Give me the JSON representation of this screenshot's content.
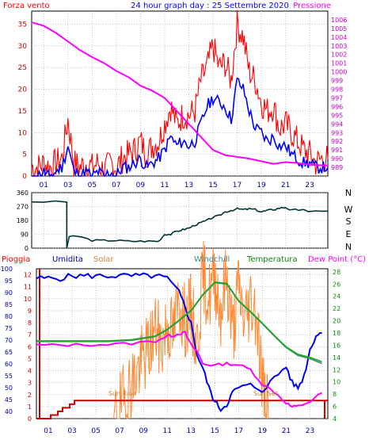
{
  "header": {
    "left_label": "Forza vento",
    "title": "24 hour graph day : 25 Settembre 2020",
    "right_label": "Pressione"
  },
  "colors": {
    "wind": "#ff0000",
    "gust": "#0000ff",
    "pressure": "#ff00ff",
    "direction": "#003333",
    "rain": "#cc0000",
    "humidity": "#0000ee",
    "solar": "#ff8833",
    "windchill": "#448888",
    "temperature": "#22aa22",
    "dewpoint": "#ff00ff",
    "grid": "#a0a0a0"
  },
  "x_ticks": [
    "01",
    "03",
    "05",
    "07",
    "09",
    "11",
    "13",
    "15",
    "17",
    "19",
    "21",
    "23"
  ],
  "compass": [
    "N",
    "W",
    "S",
    "E",
    "N"
  ],
  "bottom_header": {
    "rain": "Pioggia",
    "humidity": "Umidita",
    "solar": "Solar",
    "windchill": "Windchill",
    "temperature": "Temperatura",
    "dewpoint": "Dew Point (°C)"
  },
  "annotations": {
    "sunrise": "Sun Rise",
    "sunset": "Sun Set"
  },
  "chart_data": [
    {
      "type": "line",
      "x_unit": "hour",
      "xlim": [
        0,
        24.5
      ],
      "ylim_left": [
        0,
        38
      ],
      "left_ticks": [
        0,
        5,
        10,
        15,
        20,
        25,
        30,
        35
      ],
      "ylim_right": [
        988,
        1007
      ],
      "right_ticks": [
        989,
        990,
        991,
        992,
        993,
        994,
        995,
        996,
        997,
        998,
        999,
        1000,
        1001,
        1002,
        1003,
        1004,
        1005,
        1006
      ],
      "series": [
        {
          "name": "Forza vento",
          "axis": "left",
          "x": [
            0,
            0.5,
            1,
            1.5,
            2,
            2.5,
            3,
            3.5,
            4,
            4.5,
            5,
            5.5,
            6,
            6.5,
            7,
            7.5,
            8,
            8.5,
            9,
            9.5,
            10,
            10.5,
            11,
            11.5,
            12,
            12.5,
            13,
            13.5,
            14,
            14.5,
            15,
            15.5,
            16,
            16.5,
            17,
            17.5,
            18,
            18.5,
            19,
            19.5,
            20,
            20.5,
            21,
            21.5,
            22,
            22.5,
            23,
            23.5,
            24,
            24.5
          ],
          "y": [
            2,
            2,
            3,
            2,
            3,
            4,
            13,
            3,
            2,
            3,
            2,
            3,
            1,
            3,
            2,
            4,
            5,
            6,
            8,
            5,
            7,
            8,
            12,
            16,
            12,
            14,
            14,
            15,
            22,
            25,
            30,
            25,
            26,
            22,
            35,
            32,
            24,
            22,
            17,
            15,
            16,
            11,
            12,
            10,
            8,
            6,
            5,
            3,
            4,
            4
          ]
        },
        {
          "name": "Gust",
          "axis": "left",
          "x": [
            0,
            0.5,
            1,
            1.5,
            2,
            2.5,
            3,
            3.5,
            4,
            4.5,
            5,
            5.5,
            6,
            6.5,
            7,
            7.5,
            8,
            8.5,
            9,
            9.5,
            10,
            10.5,
            11,
            11.5,
            12,
            12.5,
            13,
            13.5,
            14,
            14.5,
            15,
            15.5,
            16,
            16.5,
            17,
            17.5,
            18,
            18.5,
            19,
            19.5,
            20,
            20.5,
            21,
            21.5,
            22,
            22.5,
            23,
            23.5,
            24,
            24.5
          ],
          "y": [
            0,
            0,
            1,
            0,
            1,
            2,
            7,
            1,
            0,
            1,
            0,
            1,
            0,
            1,
            0,
            2,
            2,
            3,
            4,
            2,
            3,
            4,
            6,
            9,
            7,
            8,
            7,
            8,
            12,
            16,
            18,
            17,
            16,
            13,
            22,
            20,
            15,
            11,
            10,
            8,
            9,
            7,
            7,
            5,
            4,
            3,
            3,
            2,
            2,
            2
          ]
        },
        {
          "name": "Pressione",
          "axis": "right",
          "x": [
            0,
            1,
            2,
            3,
            4,
            5,
            6,
            7,
            8,
            9,
            10,
            11,
            12,
            13,
            14,
            15,
            16,
            17,
            18,
            19,
            20,
            21,
            22,
            23,
            24.5
          ],
          "y": [
            1005.7,
            1005.3,
            1004.5,
            1003.5,
            1002.5,
            1001.7,
            1001.0,
            1000.1,
            999.4,
            998.4,
            997.8,
            997.0,
            995.5,
            994.0,
            992.5,
            991.0,
            990.4,
            990.2,
            990.0,
            989.7,
            989.4,
            989.6,
            989.5,
            989.3,
            989.2
          ]
        }
      ]
    },
    {
      "type": "line",
      "x_unit": "hour",
      "xlim": [
        0,
        24.5
      ],
      "ylim": [
        0,
        360
      ],
      "y_ticks": [
        0,
        90,
        180,
        270,
        360
      ],
      "series": [
        {
          "name": "Wind direction",
          "x": [
            0,
            2.9,
            2.9,
            3.1,
            4,
            5,
            6,
            7,
            8,
            9,
            10,
            10.5,
            11,
            11.5,
            12,
            12.5,
            13,
            13.5,
            14,
            14.5,
            15,
            15.5,
            16,
            16.5,
            17,
            17.5,
            18,
            18.5,
            19,
            19.5,
            20,
            20.5,
            21,
            21.5,
            22,
            22.5,
            23,
            24.5
          ],
          "y": [
            302,
            300,
            0,
            75,
            75,
            50,
            50,
            50,
            45,
            45,
            45,
            45,
            90,
            90,
            110,
            120,
            130,
            150,
            165,
            180,
            200,
            210,
            235,
            245,
            255,
            250,
            255,
            250,
            235,
            245,
            250,
            260,
            265,
            245,
            250,
            245,
            240,
            240
          ]
        }
      ]
    },
    {
      "type": "line",
      "x_unit": "hour",
      "xlim": [
        0,
        24.5
      ],
      "ylim_left": [
        37,
        100
      ],
      "left_ticks": [
        40,
        45,
        50,
        55,
        60,
        65,
        70,
        75,
        80,
        85,
        90,
        95,
        100
      ],
      "ylim_rain": [
        0,
        12.5
      ],
      "rain_ticks": [
        0,
        1,
        2,
        3,
        4,
        5,
        6,
        7,
        8,
        9,
        10,
        11,
        12
      ],
      "ylim_right": [
        4,
        28.5
      ],
      "right_ticks": [
        4,
        6,
        8,
        10,
        12,
        14,
        16,
        18,
        20,
        22,
        24,
        26,
        28
      ],
      "series": [
        {
          "name": "Pioggia",
          "axis": "rain",
          "x": [
            0,
            0.8,
            1.2,
            1.8,
            2.2,
            2.8,
            3.2,
            4,
            24.5
          ],
          "y": [
            0,
            0,
            0.3,
            0.6,
            0.9,
            1.2,
            1.5,
            1.5,
            1.5
          ]
        },
        {
          "name": "Umidita",
          "axis": "left",
          "x": [
            0,
            1,
            2,
            3,
            4,
            5,
            6,
            7,
            8,
            9,
            10,
            11,
            12,
            12.5,
            13,
            13.5,
            14,
            14.5,
            15,
            15.5,
            16,
            16.5,
            17,
            18,
            19,
            20,
            21,
            21.5,
            22,
            22.5,
            23,
            23.5,
            24
          ],
          "y": [
            96,
            96,
            96,
            97,
            97,
            97,
            97,
            97,
            97,
            97,
            97,
            96,
            90,
            84,
            77,
            64,
            58,
            50,
            44,
            41,
            43,
            48,
            50,
            51,
            49,
            54,
            59,
            52,
            50,
            55,
            66,
            72,
            73
          ]
        },
        {
          "name": "Solar",
          "axis": "rain",
          "x": [
            6.5,
            7,
            7.5,
            8,
            8.5,
            9,
            9.5,
            10,
            10.5,
            11,
            11.5,
            12,
            12.5,
            13,
            13.5,
            14,
            14.5,
            15,
            15.5,
            16,
            16.5,
            17,
            17.5,
            18,
            18.5,
            19,
            19.5
          ],
          "y": [
            0,
            0.8,
            1.8,
            3,
            4,
            5,
            6,
            7.5,
            6,
            8,
            7,
            10,
            8,
            9,
            6,
            12,
            10,
            12,
            9,
            12,
            7,
            11,
            8,
            10,
            9,
            3,
            0
          ]
        },
        {
          "name": "Windchill",
          "axis": "right",
          "x": [
            0,
            2,
            4,
            6,
            8,
            10,
            11,
            12,
            13,
            14,
            15,
            16,
            17,
            18,
            19,
            20,
            21,
            22,
            23,
            24
          ],
          "y": [
            16.6,
            16.6,
            16.6,
            16.6,
            16.8,
            17.4,
            18.5,
            20,
            21.6,
            24.2,
            26.2,
            26,
            23.2,
            21.4,
            19.5,
            17.5,
            15.6,
            14.3,
            13.8,
            13
          ]
        },
        {
          "name": "Temperatura",
          "axis": "right",
          "x": [
            0,
            2,
            4,
            6,
            8,
            10,
            11,
            12,
            13,
            14,
            15,
            16,
            17,
            18,
            19,
            20,
            21,
            22,
            23,
            24
          ],
          "y": [
            16.7,
            16.7,
            16.7,
            16.7,
            16.9,
            17.5,
            18.6,
            20.1,
            21.7,
            24.3,
            26.3,
            26.1,
            23.3,
            21.5,
            19.6,
            17.6,
            15.7,
            14.5,
            14,
            13.3
          ]
        },
        {
          "name": "Dew Point",
          "axis": "right",
          "x": [
            0,
            2,
            4,
            6,
            8,
            10,
            11,
            11.5,
            12,
            12.5,
            13,
            13.5,
            14,
            15,
            16,
            17,
            18,
            19,
            20,
            21,
            21.5,
            22,
            23,
            24
          ],
          "y": [
            16.0,
            16.0,
            16.1,
            16.1,
            16.3,
            16.7,
            17.5,
            17.6,
            17.9,
            18.0,
            16.0,
            15.0,
            13.0,
            12.7,
            13.0,
            12.8,
            12.0,
            9.6,
            8.4,
            6.6,
            5.9,
            6.0,
            6.8,
            8.2
          ]
        }
      ]
    }
  ]
}
